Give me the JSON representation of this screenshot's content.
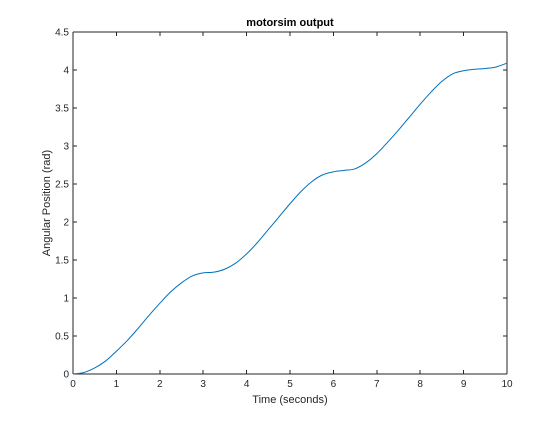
{
  "chart_data": {
    "type": "line",
    "title": "motorsim output",
    "xlabel": "Time (seconds)",
    "ylabel": "Angular Position (rad)",
    "xlim": [
      0,
      10
    ],
    "ylim": [
      0,
      4.5
    ],
    "xticks": [
      0,
      1,
      2,
      3,
      4,
      5,
      6,
      7,
      8,
      9,
      10
    ],
    "yticks": [
      0,
      0.5,
      1,
      1.5,
      2,
      2.5,
      3,
      3.5,
      4,
      4.5
    ],
    "xtick_labels": [
      "0",
      "1",
      "2",
      "3",
      "4",
      "5",
      "6",
      "7",
      "8",
      "9",
      "10"
    ],
    "ytick_labels": [
      "0",
      "0.5",
      "1",
      "1.5",
      "2",
      "2.5",
      "3",
      "3.5",
      "4",
      "4.5"
    ],
    "grid": false,
    "box": true,
    "series": [
      {
        "color": "#0072BD",
        "x": [
          0,
          0.25,
          0.5,
          0.75,
          1,
          1.25,
          1.5,
          1.75,
          2,
          2.25,
          2.5,
          2.75,
          3,
          3.25,
          3.5,
          3.75,
          4,
          4.25,
          4.5,
          4.75,
          5,
          5.25,
          5.5,
          5.75,
          6,
          6.25,
          6.5,
          6.75,
          7,
          7.25,
          7.5,
          7.75,
          8,
          8.25,
          8.5,
          8.75,
          9,
          9.25,
          9.5,
          9.75,
          10
        ],
        "y": [
          0,
          0.02,
          0.08,
          0.17,
          0.3,
          0.44,
          0.6,
          0.77,
          0.93,
          1.08,
          1.2,
          1.29,
          1.33,
          1.34,
          1.38,
          1.46,
          1.58,
          1.73,
          1.9,
          2.07,
          2.24,
          2.4,
          2.53,
          2.62,
          2.66,
          2.68,
          2.7,
          2.78,
          2.9,
          3.05,
          3.21,
          3.38,
          3.55,
          3.71,
          3.85,
          3.95,
          3.99,
          4.01,
          4.02,
          4.04,
          4.09
        ]
      }
    ]
  }
}
